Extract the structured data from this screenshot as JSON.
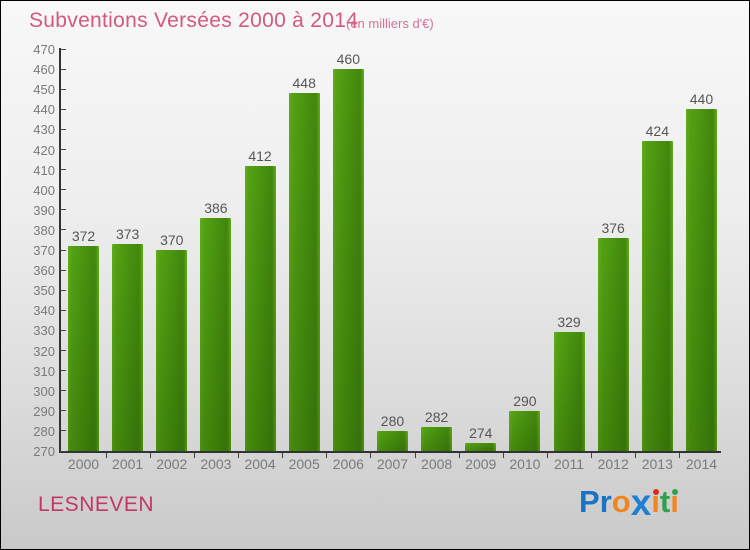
{
  "header": {
    "title": "Subventions Versées 2000 à 2014",
    "subtitle": "(en milliers d'€)"
  },
  "footer": {
    "city": "LESNEVEN"
  },
  "logo": {
    "name": "Proxiti",
    "letters": [
      {
        "ch": "P",
        "color": "#1a74c4"
      },
      {
        "ch": "r",
        "color": "#1a74c4"
      },
      {
        "ch": "o",
        "color": "#f0861d"
      },
      {
        "ch": "x",
        "color": "#1f7fd4",
        "big": true
      },
      {
        "ch": "i",
        "color": "#f0861d",
        "dot": "#e02a1a"
      },
      {
        "ch": "t",
        "color": "#2fa14b"
      },
      {
        "ch": "i",
        "color": "#f0861d",
        "dot": "#2fa14b"
      }
    ]
  },
  "colors": {
    "title": "#d4597c",
    "subtitle": "#d4719b",
    "city": "#c23768",
    "axis": "#333333",
    "tick_label": "#7a7a7a",
    "value_label": "#565656",
    "bar_top": "#92cb48",
    "bar_bottom": "#74aa2e",
    "bar_edge": "#a9d964",
    "background_top": "#f8f8f8",
    "background_bottom": "#c9c9c9"
  },
  "chart_data": {
    "type": "bar",
    "title": "Subventions Versées 2000 à 2014",
    "subtitle": "(en milliers d'€)",
    "categories": [
      "2000",
      "2001",
      "2002",
      "2003",
      "2004",
      "2005",
      "2006",
      "2007",
      "2008",
      "2009",
      "2010",
      "2011",
      "2012",
      "2013",
      "2014"
    ],
    "values": [
      372,
      373,
      370,
      386,
      412,
      448,
      460,
      280,
      282,
      274,
      290,
      329,
      376,
      424,
      440
    ],
    "value_labels": true,
    "xlabel": "",
    "ylabel": "",
    "ylim": [
      270,
      470
    ],
    "ytick_step": 10,
    "grid": false,
    "legend": "none",
    "bar_color": "green-gradient"
  }
}
